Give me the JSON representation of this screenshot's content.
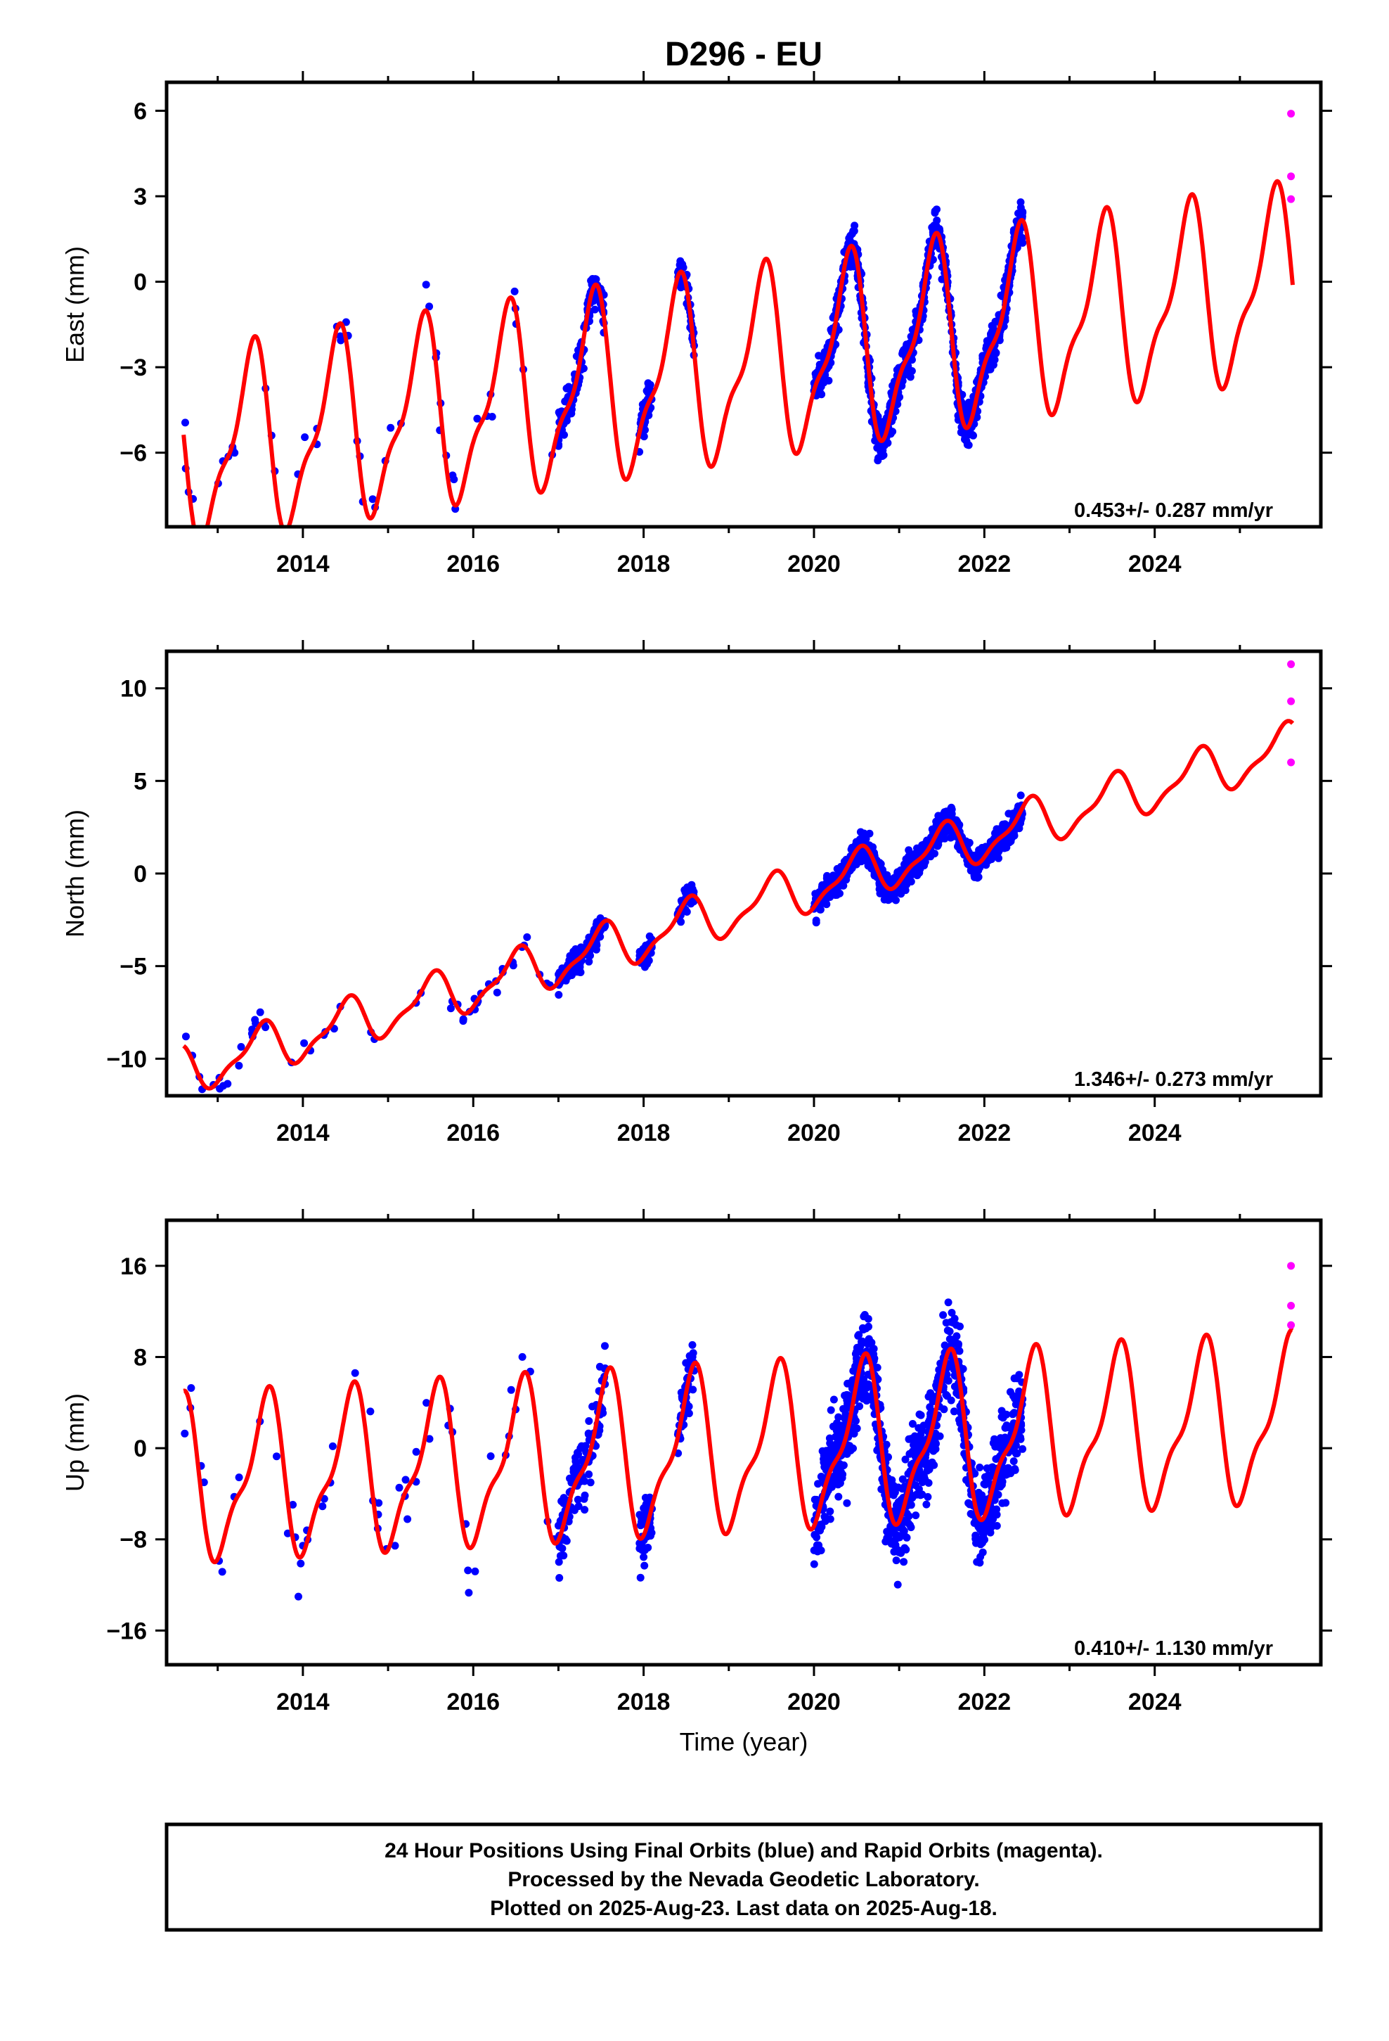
{
  "title": "D296 - EU",
  "xlabel": "Time (year)",
  "colors": {
    "final": "#0000ff",
    "rapid": "#ff00ff",
    "model": "#ff0000",
    "frame": "#000000"
  },
  "footer": {
    "line1": "24 Hour Positions Using Final Orbits (blue) and Rapid Orbits (magenta).",
    "line2": "Processed by the Nevada Geodetic Laboratory.",
    "line3": "Plotted on 2025-Aug-23. Last data on 2025-Aug-18."
  },
  "chart_data": [
    {
      "type": "scatter",
      "ylabel": "East (mm)",
      "rate": "0.453+/- 0.287 mm/yr",
      "xlim": [
        2012.4,
        2025.95
      ],
      "ylim": [
        -8.6,
        7.0
      ],
      "xticks": [
        2014,
        2016,
        2018,
        2020,
        2022,
        2024
      ],
      "yticks": [
        -6,
        -3,
        0,
        3,
        6
      ],
      "model": {
        "offset": -6.0,
        "trend": 0.453,
        "amp": 3.0,
        "t0": 2012.6,
        "peak": 2013.38
      },
      "data_segments": [
        {
          "start": 2012.6,
          "end": 2017.0,
          "n": 55,
          "noise": 1.5
        },
        {
          "start": 2017.0,
          "end": 2017.55,
          "n": 130,
          "noise": 0.9
        },
        {
          "start": 2017.95,
          "end": 2018.1,
          "n": 50,
          "noise": 1.0
        },
        {
          "start": 2018.4,
          "end": 2018.6,
          "n": 50,
          "noise": 0.8
        },
        {
          "start": 2020.0,
          "end": 2022.45,
          "n": 1000,
          "noise": 0.9
        }
      ],
      "rapid_points": [
        {
          "x": 2025.6,
          "y": 5.9
        },
        {
          "x": 2025.6,
          "y": 3.7
        },
        {
          "x": 2025.6,
          "y": 2.9
        }
      ]
    },
    {
      "type": "scatter",
      "ylabel": "North (mm)",
      "rate": "1.346+/- 0.273 mm/yr",
      "xlim": [
        2012.4,
        2025.95
      ],
      "ylim": [
        -12.0,
        12.0
      ],
      "xticks": [
        2014,
        2016,
        2018,
        2020,
        2022,
        2024
      ],
      "yticks": [
        -10,
        -5,
        0,
        5,
        10
      ],
      "model": {
        "offset": -10.7,
        "trend": 1.346,
        "amp": 1.2,
        "t0": 2012.6,
        "peak": 2013.5
      },
      "data_segments": [
        {
          "start": 2012.6,
          "end": 2017.0,
          "n": 55,
          "noise": 1.0
        },
        {
          "start": 2017.0,
          "end": 2017.55,
          "n": 130,
          "noise": 0.9
        },
        {
          "start": 2017.95,
          "end": 2018.1,
          "n": 50,
          "noise": 0.8
        },
        {
          "start": 2018.4,
          "end": 2018.6,
          "n": 50,
          "noise": 0.8
        },
        {
          "start": 2020.0,
          "end": 2022.45,
          "n": 1000,
          "noise": 0.9
        }
      ],
      "rapid_points": [
        {
          "x": 2025.6,
          "y": 11.3
        },
        {
          "x": 2025.6,
          "y": 9.3
        },
        {
          "x": 2025.6,
          "y": 6.0
        }
      ]
    },
    {
      "type": "scatter",
      "ylabel": "Up (mm)",
      "rate": "0.410+/- 1.130 mm/yr",
      "xlim": [
        2012.4,
        2025.95
      ],
      "ylim": [
        -19.0,
        20.0
      ],
      "xticks": [
        2014,
        2016,
        2018,
        2020,
        2022,
        2024
      ],
      "yticks": [
        -16,
        -8,
        0,
        8,
        16
      ],
      "model": {
        "offset": -3.0,
        "trend": 0.41,
        "amp": 6.5,
        "t0": 2012.6,
        "peak": 2013.55
      },
      "data_segments": [
        {
          "start": 2012.6,
          "end": 2017.0,
          "n": 55,
          "noise": 4.5
        },
        {
          "start": 2017.0,
          "end": 2017.55,
          "n": 130,
          "noise": 4.0
        },
        {
          "start": 2017.95,
          "end": 2018.1,
          "n": 50,
          "noise": 4.0
        },
        {
          "start": 2018.4,
          "end": 2018.6,
          "n": 50,
          "noise": 3.0
        },
        {
          "start": 2020.0,
          "end": 2022.45,
          "n": 1000,
          "noise": 5.0
        }
      ],
      "rapid_points": [
        {
          "x": 2025.6,
          "y": 16.0
        },
        {
          "x": 2025.6,
          "y": 12.5
        },
        {
          "x": 2025.6,
          "y": 10.8
        }
      ]
    }
  ]
}
